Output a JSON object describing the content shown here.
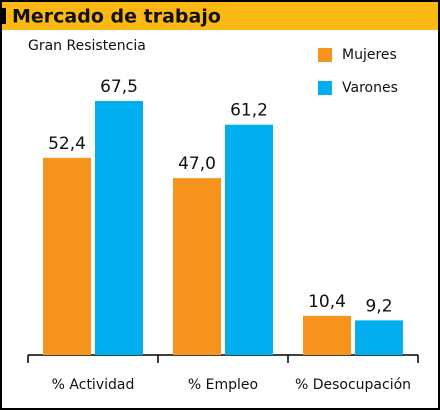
{
  "chart_data": {
    "type": "bar",
    "title": "Mercado de trabajo",
    "subtitle": "Gran Resistencia",
    "categories": [
      "% Actividad",
      "% Empleo",
      "% Desocupación"
    ],
    "series": [
      {
        "name": "Mujeres",
        "color": "#f7941d",
        "values": [
          52.4,
          47.0,
          10.4
        ],
        "value_labels": [
          "52,4",
          "47,0",
          "10,4"
        ]
      },
      {
        "name": "Varones",
        "color": "#00aeef",
        "values": [
          67.5,
          61.2,
          9.2
        ],
        "value_labels": [
          "67,5",
          "61,2",
          "9,2"
        ]
      }
    ],
    "legend": "upper right",
    "grid": false
  }
}
